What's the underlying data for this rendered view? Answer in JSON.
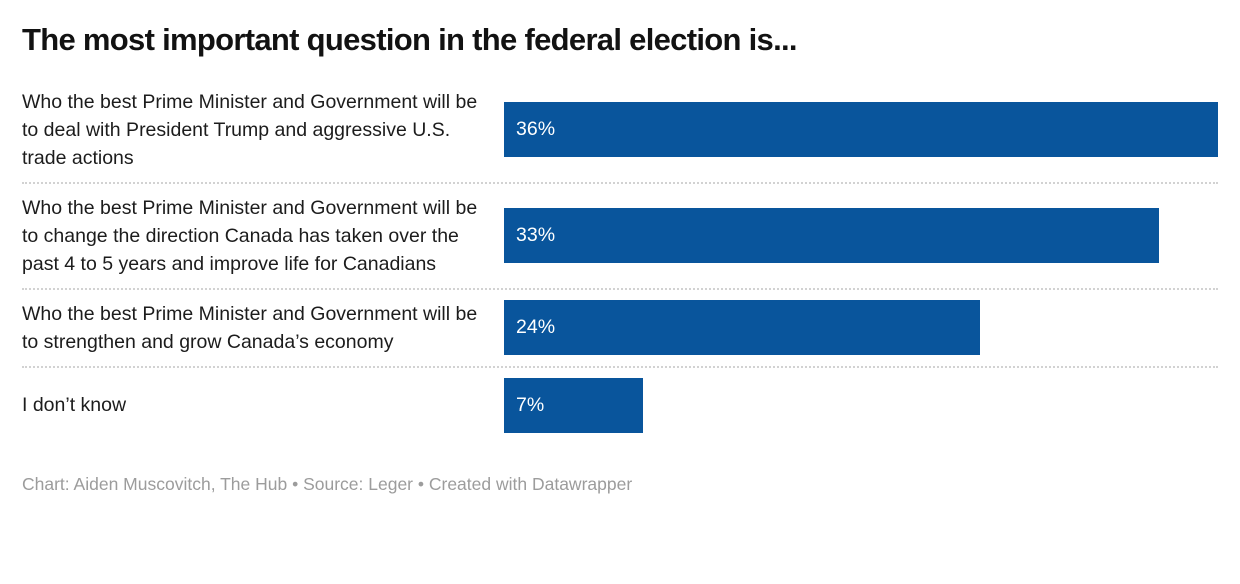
{
  "title": "The most important question in the federal election is...",
  "footer": {
    "text": "Chart: Aiden Muscovitch, The Hub • Source: Leger • Created with Datawrapper"
  },
  "colors": {
    "bar": "#09559c",
    "title_text": "#121212",
    "label_text": "#1c1c1c",
    "value_text": "#ffffff",
    "separator": "#d2d2d2",
    "footer_text": "#9c9c9c",
    "background": "#ffffff"
  },
  "chart_data": {
    "type": "bar",
    "orientation": "horizontal",
    "title": "The most important question in the federal election is...",
    "categories": [
      "Who the best Prime Minister and Government will be to deal with President Trump and aggressive U.S. trade actions",
      "Who the best Prime Minister and Government will be to change the direction Canada has taken over the past 4 to 5 years and improve life for Canadians",
      "Who the best Prime Minister and Government will be to strengthen and grow Canada’s economy",
      "I don’t know"
    ],
    "values": [
      36,
      33,
      24,
      7
    ],
    "value_labels": [
      "36%",
      "33%",
      "24%",
      "7%"
    ],
    "xlabel": "",
    "ylabel": "",
    "xlim": [
      0,
      36
    ],
    "grid": "off",
    "legend": "none",
    "bar_color": "#09559c",
    "value_label_position": "inside-left",
    "row_separator": "dotted"
  }
}
